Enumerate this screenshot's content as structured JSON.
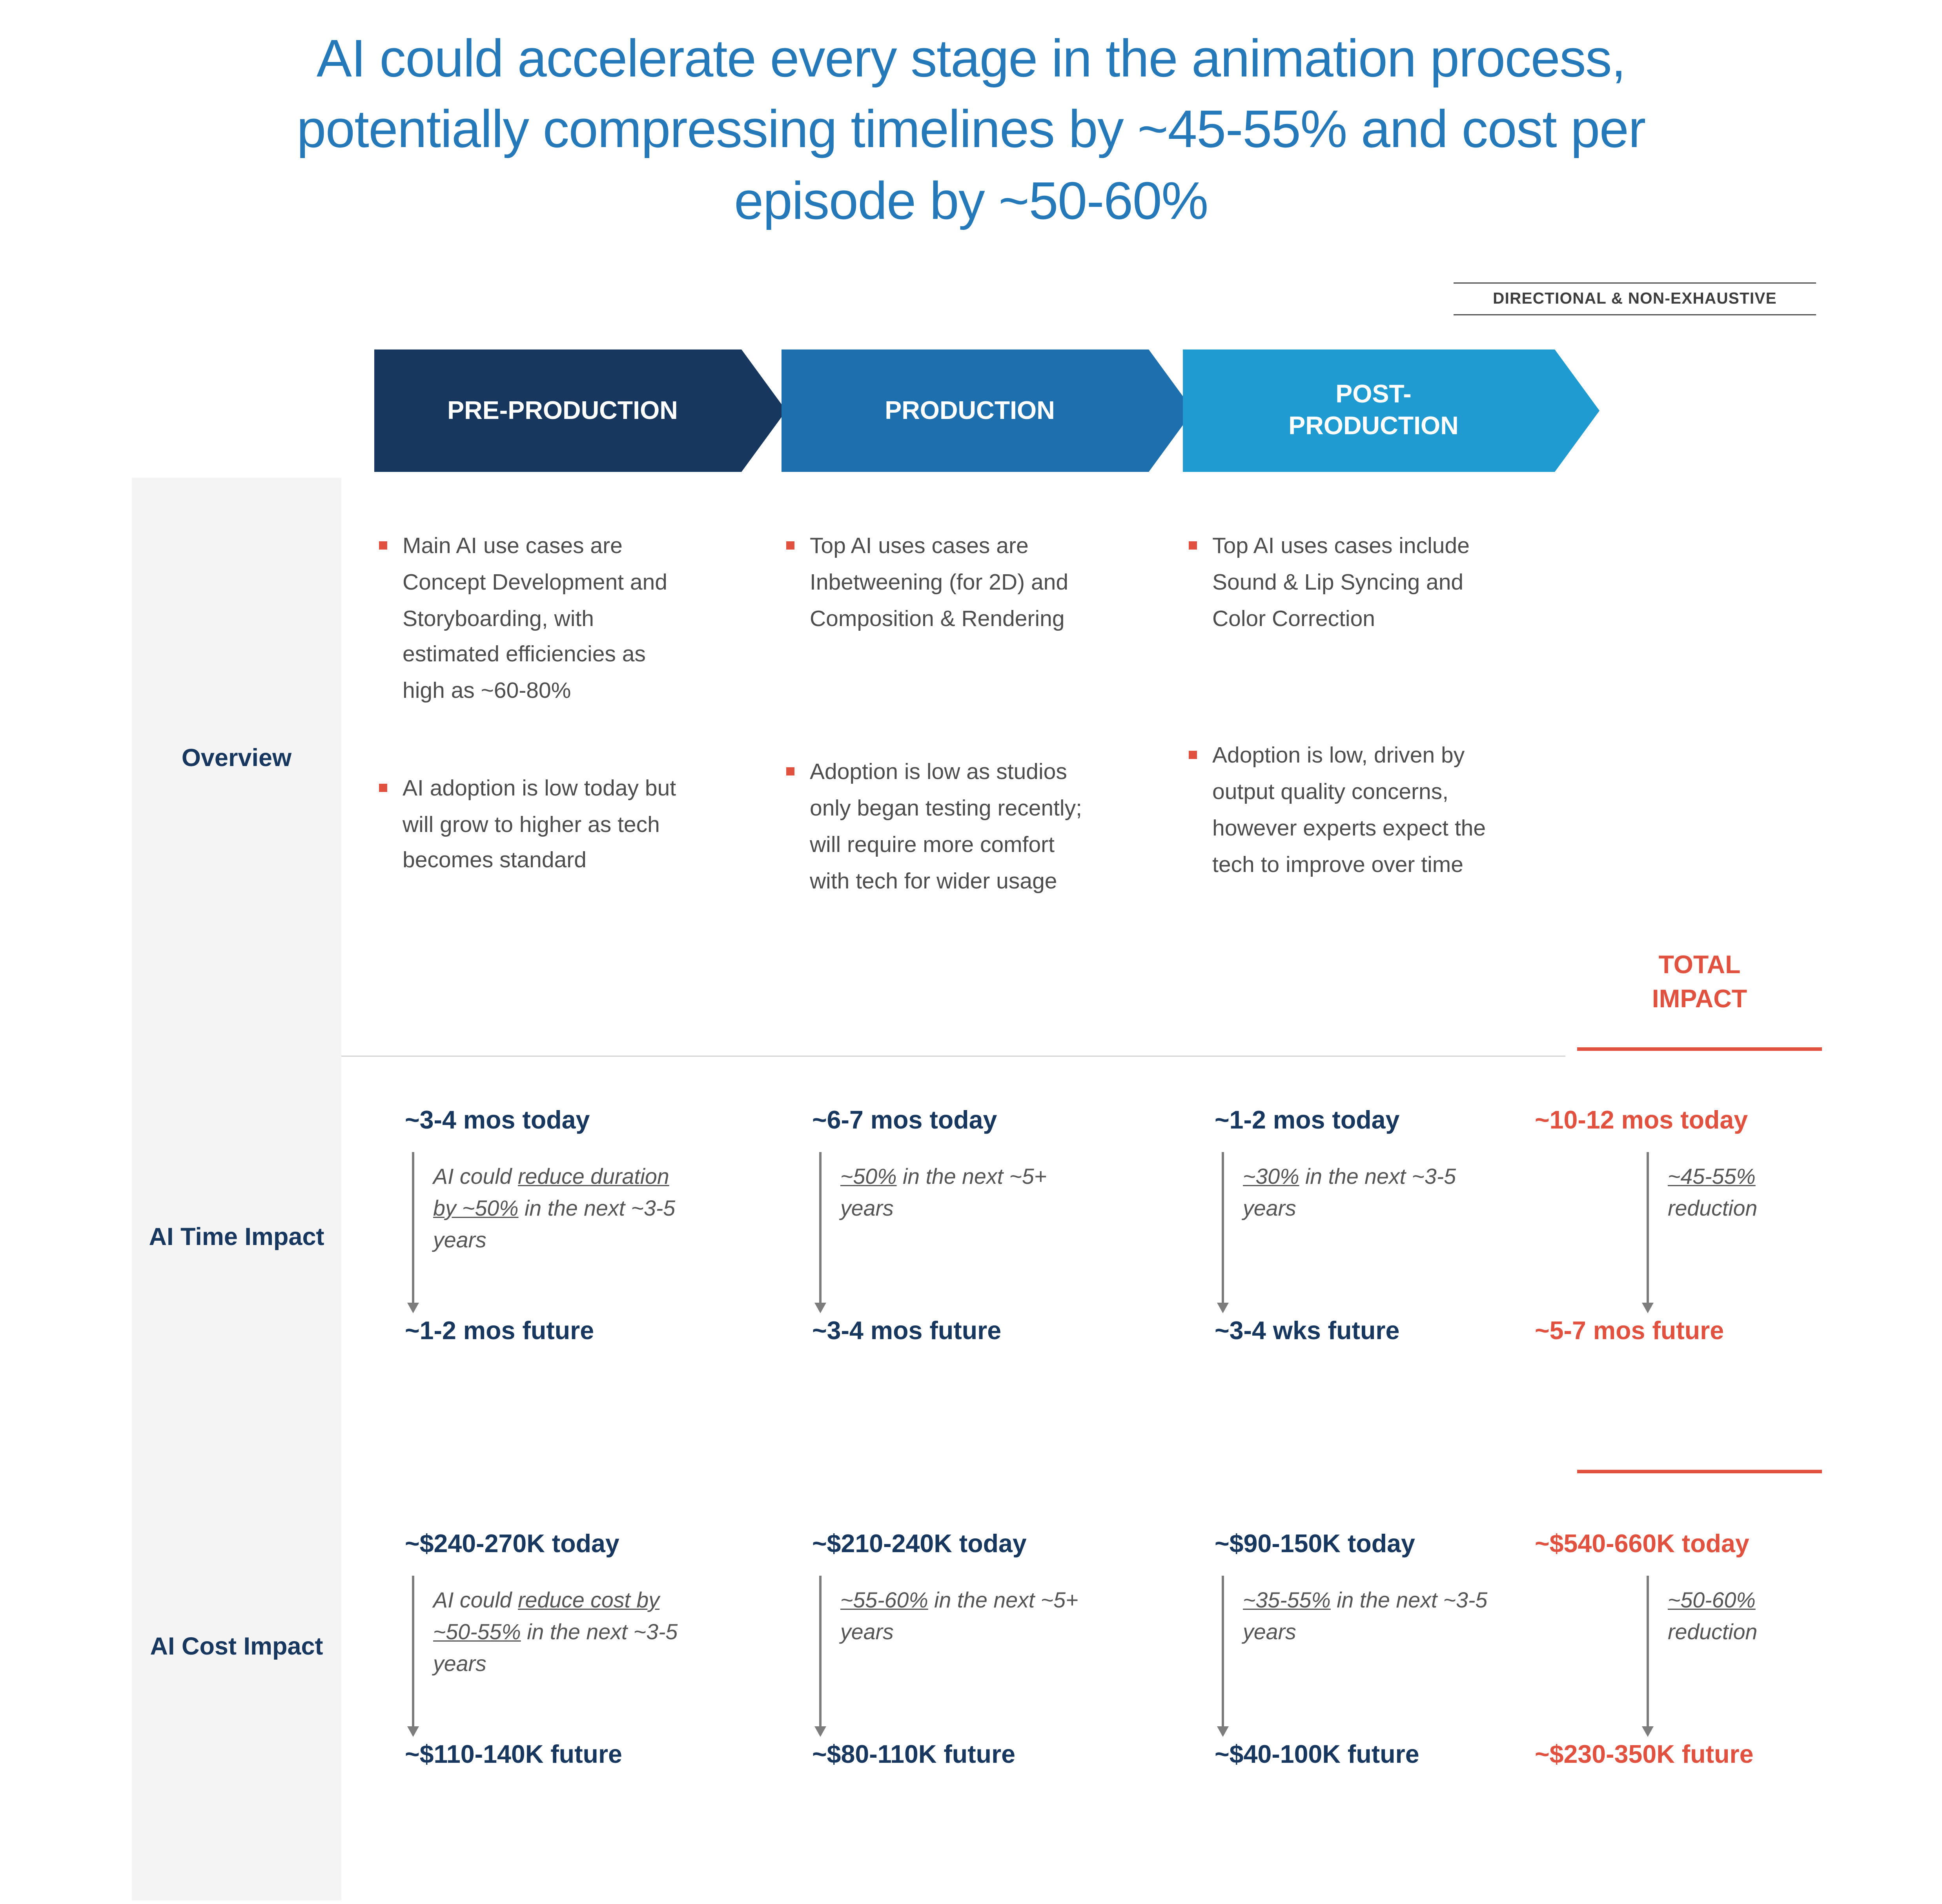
{
  "title": "AI could accelerate every stage in the animation process, potentially compressing timelines by ~45-55% and cost per episode by ~50-60%",
  "disclaimer": "DIRECTIONAL & NON-EXHAUSTIVE",
  "total_header": "TOTAL IMPACT",
  "row_labels": {
    "overview": "Overview",
    "time": "AI Time Impact",
    "cost": "AI Cost Impact"
  },
  "colors": {
    "navy": "#17375e",
    "blue": "#1d6fad",
    "light_blue": "#1f9bd2",
    "accent_red": "#e0523f",
    "title_blue": "#2679b8"
  },
  "stages": [
    {
      "label": "PRE-PRODUCTION",
      "bullets": [
        "Main AI use cases are Concept Development and Storyboarding, with estimated efficiencies as high as ~60-80%",
        "AI adoption is low today but will grow to higher as tech becomes standard"
      ],
      "time": {
        "today": "~3-4 mos today",
        "note_pre": "AI could ",
        "note_u": "reduce duration by ~50%",
        "note_post": " in the next ~3-5 years",
        "future": "~1-2 mos future"
      },
      "cost": {
        "today": "~$240-270K today",
        "note_pre": "AI could ",
        "note_u": "reduce cost by ~50-55%",
        "note_post": " in the next ~3-5 years",
        "future": "~$110-140K future"
      }
    },
    {
      "label": "PRODUCTION",
      "bullets": [
        "Top AI uses cases are Inbetweening (for 2D) and Composition & Rendering",
        "Adoption is low as studios only began testing recently; will require more comfort with tech for wider usage"
      ],
      "time": {
        "today": "~6-7 mos today",
        "note_pre": "",
        "note_u": "~50%",
        "note_post": " in the next ~5+ years",
        "future": "~3-4 mos future"
      },
      "cost": {
        "today": "~$210-240K today",
        "note_pre": "",
        "note_u": "~55-60%",
        "note_post": " in the next ~5+ years",
        "future": "~$80-110K future"
      }
    },
    {
      "label": "POST-PRODUCTION",
      "bullets": [
        "Top AI uses cases include Sound & Lip Syncing and Color Correction",
        "Adoption is low, driven by output quality concerns, however experts expect the tech to improve over time"
      ],
      "time": {
        "today": "~1-2 mos today",
        "note_pre": "",
        "note_u": "~30%",
        "note_post": " in the next ~3-5 years",
        "future": "~3-4 wks future"
      },
      "cost": {
        "today": "~$90-150K today",
        "note_pre": "",
        "note_u": "~35-55%",
        "note_post": " in the next ~3-5 years",
        "future": "~$40-100K future"
      }
    }
  ],
  "total": {
    "time": {
      "today": "~10-12 mos today",
      "note_pre": "",
      "note_u": "~45-55%",
      "note_post": " reduction",
      "future": "~5-7 mos future"
    },
    "cost": {
      "today": "~$540-660K today",
      "note_pre": "",
      "note_u": "~50-60%",
      "note_post": " reduction",
      "future": "~$230-350K future"
    }
  }
}
